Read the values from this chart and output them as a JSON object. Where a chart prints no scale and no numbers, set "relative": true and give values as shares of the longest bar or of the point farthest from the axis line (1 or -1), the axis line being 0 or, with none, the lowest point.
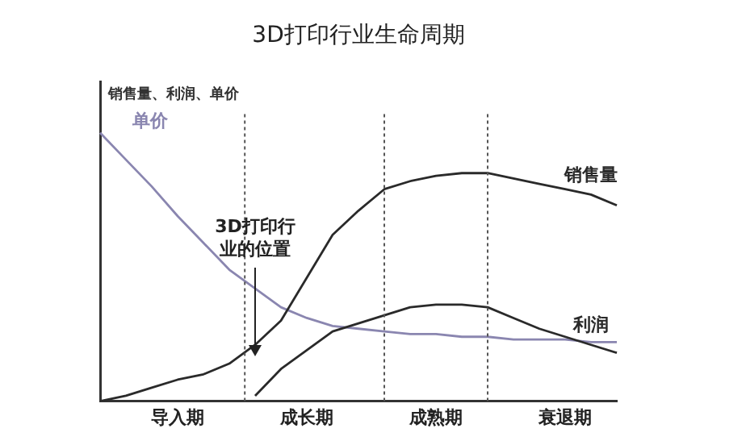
{
  "chart_data": {
    "type": "line",
    "title": "3D打印行业生命周期",
    "ylabel": "销售量、利润、单价",
    "relative": true,
    "tick_labels": "x",
    "marker": "none",
    "line_style": "solid",
    "categories": [
      null,
      null,
      null,
      "导入期",
      null,
      null,
      null,
      null,
      "成长期",
      null,
      null,
      null,
      null,
      "成熟期",
      null,
      null,
      null,
      null,
      "衰退期",
      null,
      null
    ],
    "series": [
      {
        "name": "销售量",
        "color": "#2a2a2a",
        "values": [
          0,
          0.02,
          0.05,
          0.08,
          0.1,
          0.14,
          0.21,
          0.3,
          0.46,
          0.62,
          0.71,
          0.79,
          0.82,
          0.84,
          0.85,
          0.85,
          0.83,
          0.81,
          0.79,
          0.77,
          0.73
        ]
      },
      {
        "name": "利润",
        "color": "#2a2a2a",
        "values": [
          null,
          null,
          null,
          null,
          null,
          null,
          0.02,
          0.12,
          0.19,
          0.26,
          0.29,
          0.32,
          0.35,
          0.36,
          0.36,
          0.35,
          0.31,
          0.27,
          0.24,
          0.21,
          0.18
        ]
      },
      {
        "name": "单价",
        "color": "#8a86b0",
        "values": [
          1,
          0.9,
          0.8,
          0.69,
          0.59,
          0.49,
          0.42,
          0.35,
          0.31,
          0.28,
          0.27,
          0.26,
          0.25,
          0.25,
          0.24,
          0.24,
          0.23,
          0.23,
          0.23,
          0.22,
          0.22
        ]
      }
    ],
    "annotations": [
      "3D打印行业的位置"
    ]
  }
}
